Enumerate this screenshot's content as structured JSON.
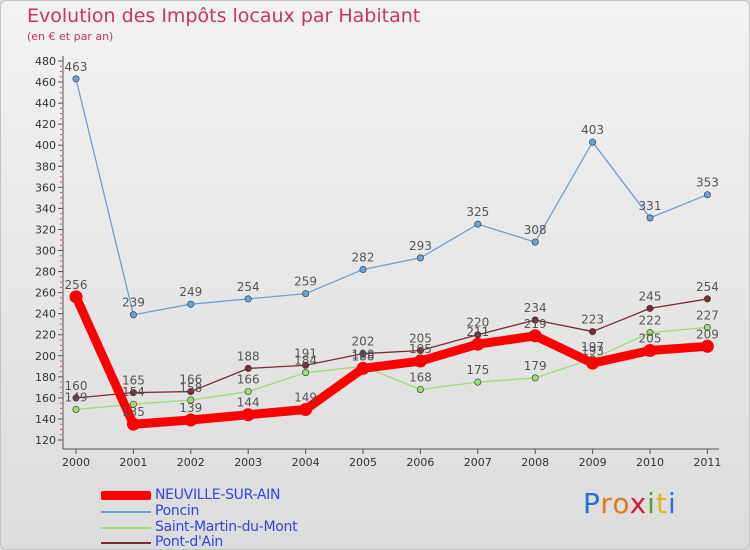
{
  "header": {
    "title": "Evolution des Impôts locaux par Habitant",
    "subtitle": "(en € et par an)"
  },
  "logo": {
    "letters": [
      "P",
      "r",
      "o",
      "x",
      "i",
      "t",
      "i"
    ],
    "colors": [
      "#2a6fd6",
      "#e07a1c",
      "#e07a1c",
      "#d11f3a",
      "#4aa832",
      "#e0b81c",
      "#2a6fd6"
    ]
  },
  "chart_data": {
    "type": "line",
    "title": "Evolution des Impôts locaux par Habitant",
    "subtitle": "(en € et par an)",
    "xlabel": "",
    "ylabel": "",
    "x": [
      "2000",
      "2001",
      "2002",
      "2003",
      "2004",
      "2005",
      "2006",
      "2007",
      "2008",
      "2009",
      "2010",
      "2011"
    ],
    "ylim": [
      120,
      480
    ],
    "yticks": [
      120,
      140,
      160,
      180,
      200,
      220,
      240,
      260,
      280,
      300,
      320,
      340,
      360,
      380,
      400,
      420,
      440,
      460,
      480
    ],
    "grid": false,
    "legend_position": "bottom-left",
    "series": [
      {
        "name": "NEUVILLE-SUR-AIN",
        "color": "#ff0000",
        "values": [
          256,
          135,
          139,
          144,
          149,
          188,
          195,
          211,
          219,
          193,
          205,
          209
        ],
        "labels": [
          "256",
          "135",
          "139",
          "144",
          "149",
          "188",
          "195",
          "211",
          "219",
          "193",
          "205",
          "209"
        ]
      },
      {
        "name": "Poncin",
        "color": "#6e9fd3",
        "values": [
          463,
          239,
          249,
          254,
          259,
          282,
          293,
          325,
          308,
          403,
          331,
          353
        ],
        "labels": [
          "463",
          "239",
          "249",
          "254",
          "259",
          "282",
          "293",
          "325",
          "308",
          "403",
          "331",
          "353"
        ]
      },
      {
        "name": "Saint-Martin-du-Mont",
        "color": "#9edc78",
        "values": [
          149,
          154,
          158,
          166,
          184,
          190,
          168,
          175,
          179,
          197,
          222,
          227
        ],
        "labels": [
          "149",
          "154",
          "158",
          "166",
          "184",
          "190",
          "168",
          "175",
          "179",
          "197",
          "222",
          "227"
        ]
      },
      {
        "name": "Pont-d'Ain",
        "color": "#7a2c35",
        "values": [
          160,
          165,
          166,
          188,
          191,
          202,
          205,
          220,
          234,
          223,
          245,
          254
        ],
        "labels": [
          "160",
          "165",
          "166",
          "188",
          "191",
          "202",
          "205",
          "220",
          "234",
          "223",
          "245",
          "254"
        ]
      }
    ]
  }
}
